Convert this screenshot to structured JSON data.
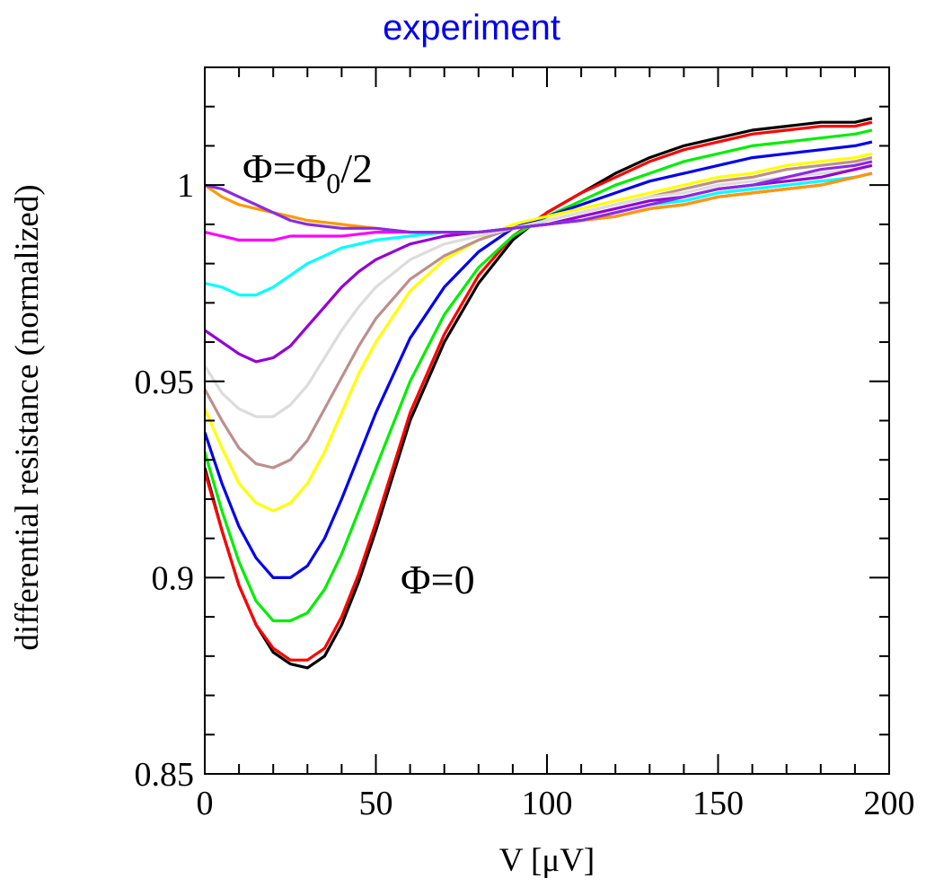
{
  "chart_data": {
    "type": "line",
    "title": "experiment",
    "xlabel": "V [μV]",
    "ylabel": "differential resistance (normalized)",
    "xlim": [
      0,
      200
    ],
    "ylim": [
      0.85,
      1.03
    ],
    "xticks": [
      0,
      50,
      100,
      150,
      200
    ],
    "xtick_labels": [
      "0",
      "50",
      "100",
      "150",
      "200"
    ],
    "yticks": [
      0.85,
      0.9,
      0.95,
      1.0
    ],
    "ytick_labels": [
      "0.85",
      "0.9",
      "0.95",
      "1"
    ],
    "grid": false,
    "legend": "none",
    "annotations": {
      "top_phi": "Φ=Φ",
      "top_sub": "0",
      "top_rest": "/2",
      "bottom": "Φ=0"
    },
    "series": [
      {
        "color": "#000000",
        "points": [
          [
            0,
            0.928
          ],
          [
            5,
            0.912
          ],
          [
            10,
            0.898
          ],
          [
            15,
            0.888
          ],
          [
            20,
            0.881
          ],
          [
            25,
            0.878
          ],
          [
            30,
            0.877
          ],
          [
            35,
            0.88
          ],
          [
            40,
            0.888
          ],
          [
            45,
            0.899
          ],
          [
            50,
            0.912
          ],
          [
            60,
            0.94
          ],
          [
            70,
            0.96
          ],
          [
            80,
            0.975
          ],
          [
            90,
            0.986
          ],
          [
            100,
            0.993
          ],
          [
            110,
            0.998
          ],
          [
            120,
            1.003
          ],
          [
            130,
            1.007
          ],
          [
            140,
            1.01
          ],
          [
            150,
            1.012
          ],
          [
            160,
            1.014
          ],
          [
            170,
            1.015
          ],
          [
            180,
            1.016
          ],
          [
            190,
            1.016
          ],
          [
            195,
            1.017
          ]
        ]
      },
      {
        "color": "#ff0000",
        "points": [
          [
            0,
            0.927
          ],
          [
            5,
            0.912
          ],
          [
            10,
            0.898
          ],
          [
            15,
            0.888
          ],
          [
            20,
            0.882
          ],
          [
            25,
            0.879
          ],
          [
            30,
            0.879
          ],
          [
            35,
            0.882
          ],
          [
            40,
            0.89
          ],
          [
            45,
            0.901
          ],
          [
            50,
            0.914
          ],
          [
            60,
            0.942
          ],
          [
            70,
            0.962
          ],
          [
            80,
            0.977
          ],
          [
            90,
            0.987
          ],
          [
            100,
            0.993
          ],
          [
            110,
            0.998
          ],
          [
            120,
            1.002
          ],
          [
            130,
            1.006
          ],
          [
            140,
            1.009
          ],
          [
            150,
            1.011
          ],
          [
            160,
            1.013
          ],
          [
            170,
            1.014
          ],
          [
            180,
            1.015
          ],
          [
            190,
            1.015
          ],
          [
            195,
            1.016
          ]
        ]
      },
      {
        "color": "#00ee00",
        "points": [
          [
            0,
            0.932
          ],
          [
            5,
            0.917
          ],
          [
            10,
            0.904
          ],
          [
            15,
            0.894
          ],
          [
            20,
            0.889
          ],
          [
            25,
            0.889
          ],
          [
            30,
            0.891
          ],
          [
            35,
            0.897
          ],
          [
            40,
            0.906
          ],
          [
            45,
            0.917
          ],
          [
            50,
            0.928
          ],
          [
            60,
            0.95
          ],
          [
            70,
            0.967
          ],
          [
            80,
            0.979
          ],
          [
            90,
            0.987
          ],
          [
            100,
            0.992
          ],
          [
            110,
            0.996
          ],
          [
            120,
            1.0
          ],
          [
            130,
            1.003
          ],
          [
            140,
            1.006
          ],
          [
            150,
            1.008
          ],
          [
            160,
            1.01
          ],
          [
            170,
            1.011
          ],
          [
            180,
            1.012
          ],
          [
            190,
            1.013
          ],
          [
            195,
            1.014
          ]
        ]
      },
      {
        "color": "#0000ee",
        "points": [
          [
            0,
            0.937
          ],
          [
            5,
            0.924
          ],
          [
            10,
            0.913
          ],
          [
            15,
            0.905
          ],
          [
            20,
            0.9
          ],
          [
            25,
            0.9
          ],
          [
            30,
            0.903
          ],
          [
            35,
            0.91
          ],
          [
            40,
            0.92
          ],
          [
            45,
            0.931
          ],
          [
            50,
            0.942
          ],
          [
            60,
            0.961
          ],
          [
            70,
            0.974
          ],
          [
            80,
            0.983
          ],
          [
            90,
            0.989
          ],
          [
            100,
            0.992
          ],
          [
            110,
            0.995
          ],
          [
            120,
            0.998
          ],
          [
            130,
            1.001
          ],
          [
            140,
            1.003
          ],
          [
            150,
            1.005
          ],
          [
            160,
            1.007
          ],
          [
            170,
            1.008
          ],
          [
            180,
            1.009
          ],
          [
            190,
            1.01
          ],
          [
            195,
            1.011
          ]
        ]
      },
      {
        "color": "#ffff00",
        "points": [
          [
            0,
            0.943
          ],
          [
            5,
            0.933
          ],
          [
            10,
            0.924
          ],
          [
            15,
            0.919
          ],
          [
            20,
            0.917
          ],
          [
            25,
            0.919
          ],
          [
            30,
            0.924
          ],
          [
            35,
            0.932
          ],
          [
            40,
            0.942
          ],
          [
            45,
            0.952
          ],
          [
            50,
            0.96
          ],
          [
            60,
            0.973
          ],
          [
            70,
            0.981
          ],
          [
            80,
            0.986
          ],
          [
            90,
            0.99
          ],
          [
            100,
            0.992
          ],
          [
            110,
            0.994
          ],
          [
            120,
            0.996
          ],
          [
            130,
            0.998
          ],
          [
            140,
            1.0
          ],
          [
            150,
            1.002
          ],
          [
            160,
            1.003
          ],
          [
            170,
            1.005
          ],
          [
            180,
            1.006
          ],
          [
            190,
            1.007
          ],
          [
            195,
            1.008
          ]
        ]
      },
      {
        "color": "#bc8f8f",
        "points": [
          [
            0,
            0.948
          ],
          [
            5,
            0.94
          ],
          [
            10,
            0.933
          ],
          [
            15,
            0.929
          ],
          [
            20,
            0.928
          ],
          [
            25,
            0.93
          ],
          [
            30,
            0.935
          ],
          [
            35,
            0.943
          ],
          [
            40,
            0.951
          ],
          [
            45,
            0.959
          ],
          [
            50,
            0.966
          ],
          [
            60,
            0.976
          ],
          [
            70,
            0.982
          ],
          [
            80,
            0.986
          ],
          [
            90,
            0.989
          ],
          [
            100,
            0.991
          ],
          [
            110,
            0.993
          ],
          [
            120,
            0.995
          ],
          [
            130,
            0.997
          ],
          [
            140,
            0.999
          ],
          [
            150,
            1.001
          ],
          [
            160,
            1.002
          ],
          [
            170,
            1.004
          ],
          [
            180,
            1.005
          ],
          [
            190,
            1.006
          ],
          [
            195,
            1.007
          ]
        ]
      },
      {
        "color": "#dcdcdc",
        "points": [
          [
            0,
            0.954
          ],
          [
            5,
            0.947
          ],
          [
            10,
            0.943
          ],
          [
            15,
            0.941
          ],
          [
            20,
            0.941
          ],
          [
            25,
            0.944
          ],
          [
            30,
            0.949
          ],
          [
            35,
            0.956
          ],
          [
            40,
            0.963
          ],
          [
            45,
            0.969
          ],
          [
            50,
            0.974
          ],
          [
            60,
            0.981
          ],
          [
            70,
            0.985
          ],
          [
            80,
            0.987
          ],
          [
            90,
            0.989
          ],
          [
            100,
            0.991
          ],
          [
            110,
            0.993
          ],
          [
            120,
            0.995
          ],
          [
            130,
            0.997
          ],
          [
            140,
            0.998
          ],
          [
            150,
            1.0
          ],
          [
            160,
            1.001
          ],
          [
            170,
            1.002
          ],
          [
            180,
            1.003
          ],
          [
            190,
            1.004
          ],
          [
            195,
            1.005
          ]
        ]
      },
      {
        "color": "#9400d3",
        "points": [
          [
            0,
            0.963
          ],
          [
            5,
            0.96
          ],
          [
            10,
            0.957
          ],
          [
            15,
            0.955
          ],
          [
            20,
            0.956
          ],
          [
            25,
            0.959
          ],
          [
            30,
            0.964
          ],
          [
            35,
            0.969
          ],
          [
            40,
            0.974
          ],
          [
            45,
            0.978
          ],
          [
            50,
            0.981
          ],
          [
            60,
            0.985
          ],
          [
            70,
            0.987
          ],
          [
            80,
            0.988
          ],
          [
            90,
            0.989
          ],
          [
            100,
            0.99
          ],
          [
            110,
            0.992
          ],
          [
            120,
            0.994
          ],
          [
            130,
            0.996
          ],
          [
            140,
            0.997
          ],
          [
            150,
            0.999
          ],
          [
            160,
            1.0
          ],
          [
            170,
            1.001
          ],
          [
            180,
            1.002
          ],
          [
            190,
            1.004
          ],
          [
            195,
            1.005
          ]
        ]
      },
      {
        "color": "#00ffff",
        "points": [
          [
            0,
            0.975
          ],
          [
            5,
            0.974
          ],
          [
            10,
            0.972
          ],
          [
            15,
            0.972
          ],
          [
            20,
            0.974
          ],
          [
            25,
            0.977
          ],
          [
            30,
            0.98
          ],
          [
            35,
            0.982
          ],
          [
            40,
            0.984
          ],
          [
            45,
            0.985
          ],
          [
            50,
            0.986
          ],
          [
            60,
            0.987
          ],
          [
            70,
            0.988
          ],
          [
            80,
            0.988
          ],
          [
            90,
            0.989
          ],
          [
            100,
            0.99
          ],
          [
            110,
            0.991
          ],
          [
            120,
            0.993
          ],
          [
            130,
            0.995
          ],
          [
            140,
            0.996
          ],
          [
            150,
            0.998
          ],
          [
            160,
            0.999
          ],
          [
            170,
            1.0
          ],
          [
            180,
            1.001
          ],
          [
            190,
            1.002
          ],
          [
            195,
            1.003
          ]
        ]
      },
      {
        "color": "#ff00ff",
        "points": [
          [
            0,
            0.988
          ],
          [
            5,
            0.987
          ],
          [
            10,
            0.986
          ],
          [
            15,
            0.986
          ],
          [
            20,
            0.986
          ],
          [
            25,
            0.987
          ],
          [
            30,
            0.987
          ],
          [
            40,
            0.987
          ],
          [
            50,
            0.988
          ],
          [
            60,
            0.988
          ],
          [
            70,
            0.988
          ],
          [
            80,
            0.988
          ],
          [
            90,
            0.989
          ],
          [
            100,
            0.99
          ],
          [
            110,
            0.991
          ],
          [
            120,
            0.992
          ],
          [
            130,
            0.994
          ],
          [
            140,
            0.995
          ],
          [
            150,
            0.997
          ],
          [
            160,
            0.998
          ],
          [
            170,
            0.999
          ],
          [
            180,
            1.0
          ],
          [
            190,
            1.002
          ],
          [
            195,
            1.003
          ]
        ]
      },
      {
        "color": "#ff9900",
        "points": [
          [
            0,
            1.0
          ],
          [
            5,
            0.997
          ],
          [
            10,
            0.995
          ],
          [
            15,
            0.994
          ],
          [
            20,
            0.993
          ],
          [
            25,
            0.992
          ],
          [
            30,
            0.991
          ],
          [
            40,
            0.99
          ],
          [
            50,
            0.989
          ],
          [
            60,
            0.988
          ],
          [
            70,
            0.988
          ],
          [
            80,
            0.988
          ],
          [
            90,
            0.989
          ],
          [
            100,
            0.99
          ],
          [
            110,
            0.991
          ],
          [
            120,
            0.992
          ],
          [
            130,
            0.994
          ],
          [
            140,
            0.995
          ],
          [
            150,
            0.997
          ],
          [
            160,
            0.998
          ],
          [
            170,
            0.999
          ],
          [
            180,
            1.0
          ],
          [
            190,
            1.002
          ],
          [
            195,
            1.003
          ]
        ]
      },
      {
        "color": "#8a2be2",
        "points": [
          [
            0,
            1.0
          ],
          [
            5,
            0.999
          ],
          [
            10,
            0.997
          ],
          [
            15,
            0.995
          ],
          [
            20,
            0.993
          ],
          [
            25,
            0.991
          ],
          [
            30,
            0.99
          ],
          [
            40,
            0.989
          ],
          [
            50,
            0.989
          ],
          [
            60,
            0.988
          ],
          [
            70,
            0.988
          ],
          [
            80,
            0.988
          ],
          [
            90,
            0.989
          ],
          [
            100,
            0.99
          ],
          [
            110,
            0.991
          ],
          [
            120,
            0.993
          ],
          [
            130,
            0.995
          ],
          [
            140,
            0.997
          ],
          [
            150,
            0.999
          ],
          [
            160,
            1.0
          ],
          [
            170,
            1.002
          ],
          [
            180,
            1.004
          ],
          [
            190,
            1.005
          ],
          [
            195,
            1.006
          ]
        ]
      }
    ]
  }
}
